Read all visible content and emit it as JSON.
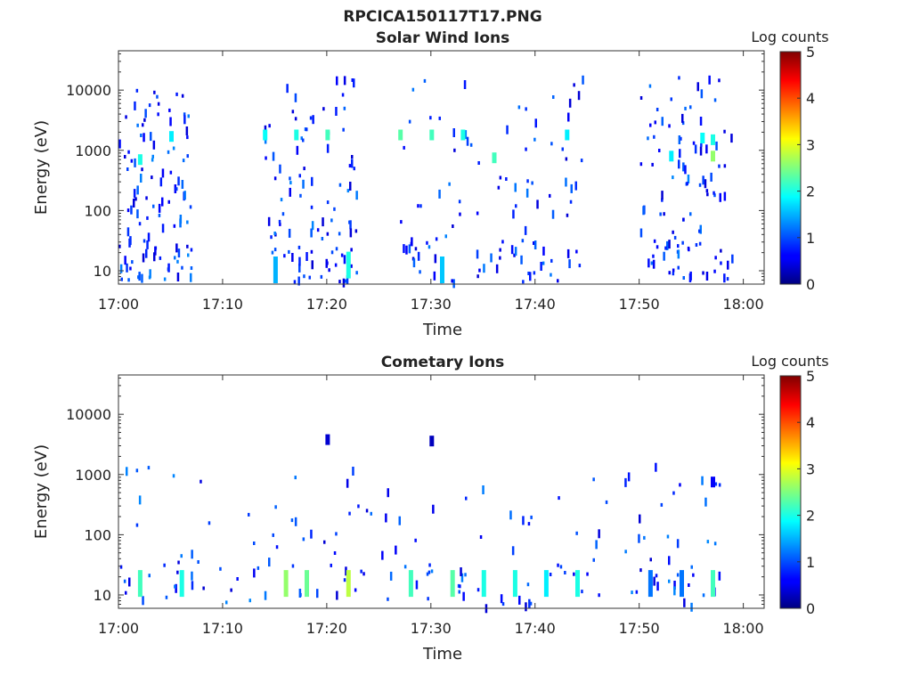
{
  "figure_title": "RPCICA150117T17.PNG",
  "chart_data": [
    {
      "type": "heatmap",
      "title": "Solar Wind Ions",
      "xlabel": "Time",
      "ylabel": "Energy (eV)",
      "x_ticks": [
        "17:00",
        "17:10",
        "17:20",
        "17:30",
        "17:40",
        "17:50",
        "18:00"
      ],
      "xlim": [
        "17:00",
        "18:02"
      ],
      "y_scale": "log",
      "y_ticks": [
        10,
        100,
        1000,
        10000
      ],
      "ylim": [
        6,
        45000
      ],
      "colorbar": {
        "label": "Log counts",
        "min": 0,
        "max": 5,
        "ticks": [
          0,
          1,
          2,
          3,
          4,
          5
        ],
        "colormap": "jet"
      },
      "background": "#ffffff",
      "active_windows": [
        {
          "start": "17:00",
          "end": "17:07"
        },
        {
          "start": "17:14",
          "end": "17:23"
        },
        {
          "start": "17:27",
          "end": "17:45"
        },
        {
          "start": "17:50",
          "end": "17:59"
        }
      ],
      "features": [
        {
          "time": "17:02",
          "energy": 700,
          "log_counts": 2.0
        },
        {
          "time": "17:05",
          "energy": 1700,
          "log_counts": 1.8
        },
        {
          "time": "17:14",
          "energy": 1800,
          "log_counts": 1.9
        },
        {
          "time": "17:17",
          "energy": 1800,
          "log_counts": 2.0
        },
        {
          "time": "17:20",
          "energy": 1800,
          "log_counts": 2.2
        },
        {
          "time": "17:27",
          "energy": 1800,
          "log_counts": 2.3
        },
        {
          "time": "17:30",
          "energy": 1800,
          "log_counts": 2.2
        },
        {
          "time": "17:33",
          "energy": 1800,
          "log_counts": 2.0
        },
        {
          "time": "17:36",
          "energy": 750,
          "log_counts": 2.2
        },
        {
          "time": "17:43",
          "energy": 1800,
          "log_counts": 1.8
        },
        {
          "time": "17:53",
          "energy": 800,
          "log_counts": 1.8
        },
        {
          "time": "17:56",
          "energy": 1600,
          "log_counts": 1.9
        },
        {
          "time": "17:57",
          "energy": 800,
          "log_counts": 2.6
        },
        {
          "time": "17:57",
          "energy": 1500,
          "log_counts": 2.0
        },
        {
          "time": "17:15",
          "energy": 10,
          "log_counts": 1.5
        },
        {
          "time": "17:22",
          "energy": 12,
          "log_counts": 2.0
        },
        {
          "time": "17:31",
          "energy": 10,
          "log_counts": 1.6
        }
      ]
    },
    {
      "type": "heatmap",
      "title": "Cometary Ions",
      "xlabel": "Time",
      "ylabel": "Energy (eV)",
      "x_ticks": [
        "17:00",
        "17:10",
        "17:20",
        "17:30",
        "17:40",
        "17:50",
        "18:00"
      ],
      "xlim": [
        "17:00",
        "18:02"
      ],
      "y_scale": "log",
      "y_ticks": [
        10,
        100,
        1000,
        10000
      ],
      "ylim": [
        6,
        45000
      ],
      "colorbar": {
        "label": "Log counts",
        "min": 0,
        "max": 5,
        "ticks": [
          0,
          1,
          2,
          3,
          4,
          5
        ],
        "colormap": "jet"
      },
      "background": "#ffffff",
      "features": [
        {
          "time": "17:02",
          "energy": 15,
          "log_counts": 2.2
        },
        {
          "time": "17:06",
          "energy": 15,
          "log_counts": 2.0
        },
        {
          "time": "17:16",
          "energy": 15,
          "log_counts": 2.6
        },
        {
          "time": "17:18",
          "energy": 15,
          "log_counts": 2.4
        },
        {
          "time": "17:22",
          "energy": 15,
          "log_counts": 2.8
        },
        {
          "time": "17:28",
          "energy": 15,
          "log_counts": 2.2
        },
        {
          "time": "17:32",
          "energy": 15,
          "log_counts": 2.3
        },
        {
          "time": "17:35",
          "energy": 15,
          "log_counts": 2.0
        },
        {
          "time": "17:38",
          "energy": 15,
          "log_counts": 2.0
        },
        {
          "time": "17:41",
          "energy": 15,
          "log_counts": 1.8
        },
        {
          "time": "17:44",
          "energy": 15,
          "log_counts": 2.0
        },
        {
          "time": "17:51",
          "energy": 15,
          "log_counts": 1.2
        },
        {
          "time": "17:54",
          "energy": 15,
          "log_counts": 1.2
        },
        {
          "time": "17:57",
          "energy": 15,
          "log_counts": 2.2
        },
        {
          "time": "17:57",
          "energy": 750,
          "log_counts": 0.6
        },
        {
          "time": "17:20",
          "energy": 3800,
          "log_counts": 0.4
        },
        {
          "time": "17:30",
          "energy": 3600,
          "log_counts": 0.3
        }
      ]
    }
  ]
}
